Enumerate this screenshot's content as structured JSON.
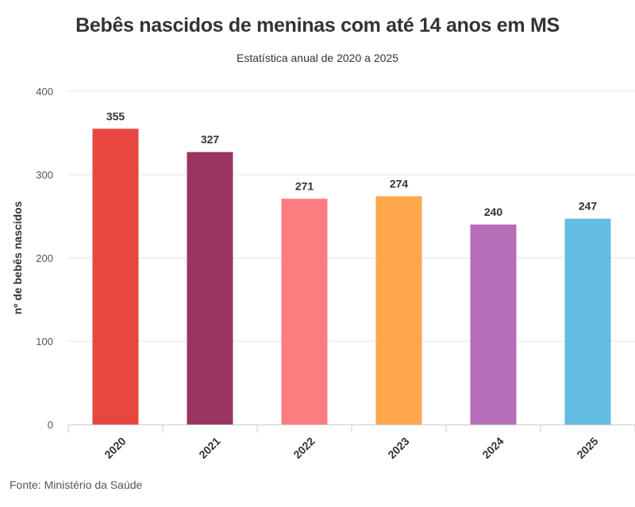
{
  "chart_data": {
    "type": "bar",
    "title": "Bebês nascidos de meninas com até 14 anos em MS",
    "subtitle": "Estatística anual de 2020 a 2025",
    "xlabel": "",
    "ylabel": "nº de bebês nascidos",
    "categories": [
      "2020",
      "2021",
      "2022",
      "2023",
      "2024",
      "2025"
    ],
    "values": [
      355,
      327,
      271,
      274,
      240,
      247
    ],
    "data_labels": [
      "355",
      "327",
      "271",
      "274",
      "240",
      "247"
    ],
    "colors": [
      "#e8473f",
      "#9b3462",
      "#fc7c80",
      "#ffa64d",
      "#b56eb7",
      "#63bce2"
    ],
    "ylim": [
      0,
      400
    ],
    "yticks": [
      0,
      100,
      200,
      300,
      400
    ],
    "ytick_labels": [
      "0",
      "100",
      "200",
      "300",
      "400"
    ],
    "grid": true,
    "legend": "none"
  },
  "source": "Fonte: Ministério da Saúde"
}
